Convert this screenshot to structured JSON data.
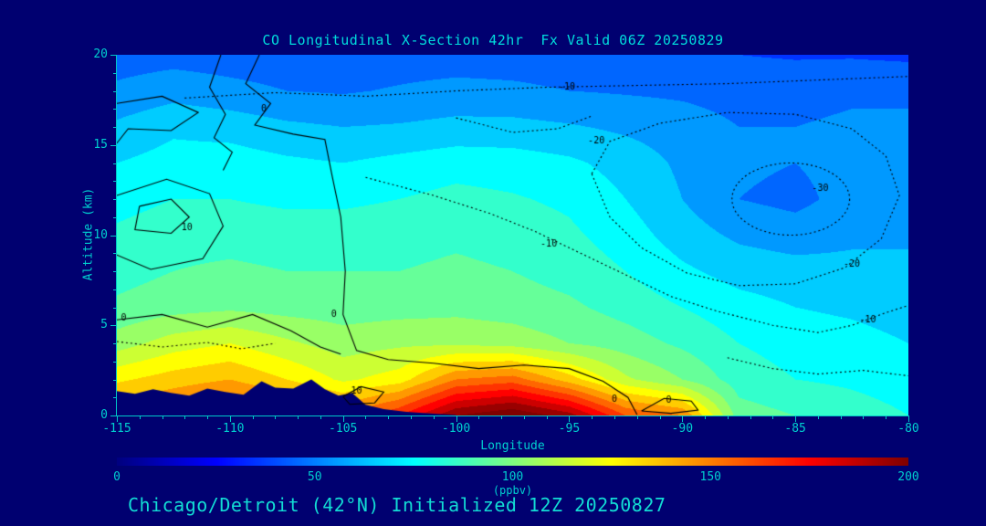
{
  "page": {
    "background": "#000070",
    "accent_text": "#00dcdc",
    "axis_text_color": "#00cfcf"
  },
  "chart_data": {
    "type": "heatmap",
    "title": "CO Longitudinal X-Section 42hr  Fx Valid 06Z 20250829",
    "caption": "Chicago/Detroit (42°N) Initialized 12Z 20250827",
    "xlabel": "Longitude",
    "ylabel": "Altitude (km)",
    "xlim": [
      -115,
      -80
    ],
    "ylim": [
      0,
      20
    ],
    "x_ticks": [
      -115,
      -110,
      -105,
      -100,
      -95,
      -90,
      -85,
      -80
    ],
    "y_ticks": [
      0,
      5,
      10,
      15,
      20
    ],
    "grid_on": false,
    "band_interval_ppbv": 10,
    "colorbar": {
      "min": 0,
      "max": 200,
      "ticks": [
        0,
        50,
        100,
        150,
        200
      ],
      "label": "(ppbv)",
      "colormap": "jet"
    },
    "grid": {
      "lon": [
        -115,
        -112.5,
        -110,
        -107.5,
        -105,
        -102.5,
        -100,
        -97.5,
        -95,
        -92.5,
        -90,
        -87.5,
        -85,
        -82.5,
        -80
      ],
      "alt_km": [
        0,
        2,
        4,
        6,
        8,
        10,
        12,
        14,
        16,
        18,
        20
      ],
      "co_ppbv": [
        [
          150,
          155,
          165,
          160,
          150,
          170,
          200,
          210,
          195,
          160,
          150,
          95,
          90,
          85,
          80
        ],
        [
          128,
          135,
          140,
          130,
          118,
          125,
          150,
          155,
          135,
          112,
          100,
          85,
          80,
          78,
          75
        ],
        [
          105,
          115,
          120,
          112,
          105,
          108,
          108,
          106,
          100,
          95,
          88,
          80,
          76,
          74,
          70
        ],
        [
          92,
          96,
          98,
          96,
          95,
          96,
          97,
          95,
          92,
          86,
          80,
          74,
          70,
          68,
          65
        ],
        [
          86,
          90,
          92,
          90,
          90,
          90,
          92,
          90,
          86,
          80,
          72,
          66,
          64,
          63,
          60
        ],
        [
          82,
          86,
          86,
          85,
          85,
          86,
          88,
          86,
          82,
          75,
          65,
          58,
          55,
          58,
          60
        ],
        [
          76,
          80,
          80,
          78,
          78,
          80,
          83,
          81,
          78,
          70,
          60,
          50,
          47,
          54,
          58
        ],
        [
          70,
          74,
          75,
          72,
          70,
          73,
          76,
          75,
          72,
          66,
          58,
          52,
          50,
          54,
          55
        ],
        [
          62,
          68,
          66,
          62,
          60,
          61,
          63,
          63,
          61,
          58,
          55,
          50,
          50,
          52,
          52
        ],
        [
          52,
          56,
          53,
          50,
          49,
          51,
          53,
          52,
          50,
          49,
          48,
          46,
          46,
          48,
          48
        ],
        [
          45,
          46,
          45,
          44,
          44,
          45,
          45,
          45,
          44,
          43,
          42,
          40,
          39,
          39,
          38
        ]
      ]
    },
    "terrain_profile": [
      {
        "lon": -115,
        "alt": 1.35
      },
      {
        "lon": -114.2,
        "alt": 1.2
      },
      {
        "lon": -113.4,
        "alt": 1.45
      },
      {
        "lon": -112.6,
        "alt": 1.25
      },
      {
        "lon": -111.8,
        "alt": 1.1
      },
      {
        "lon": -111,
        "alt": 1.5
      },
      {
        "lon": -110.2,
        "alt": 1.3
      },
      {
        "lon": -109.4,
        "alt": 1.15
      },
      {
        "lon": -108.6,
        "alt": 1.9
      },
      {
        "lon": -108,
        "alt": 1.55
      },
      {
        "lon": -107.2,
        "alt": 1.5
      },
      {
        "lon": -106.4,
        "alt": 2.0
      },
      {
        "lon": -105.8,
        "alt": 1.45
      },
      {
        "lon": -105.2,
        "alt": 1.1
      },
      {
        "lon": -104.6,
        "alt": 1.25
      },
      {
        "lon": -104,
        "alt": 0.6
      },
      {
        "lon": -103.2,
        "alt": 0.35
      },
      {
        "lon": -102.2,
        "alt": 0.2
      },
      {
        "lon": -101,
        "alt": 0.1
      },
      {
        "lon": -100,
        "alt": 0.03
      }
    ],
    "contours": {
      "solid_levels": [
        0,
        10
      ],
      "dotted_levels": [
        -10,
        -20,
        -30
      ],
      "labels": [
        {
          "text": "0",
          "lon": -108.5,
          "alt": 17.0
        },
        {
          "text": "10",
          "lon": -111.9,
          "alt": 10.4
        },
        {
          "text": "0",
          "lon": -114.7,
          "alt": 5.4
        },
        {
          "text": "0",
          "lon": -105.4,
          "alt": 5.6
        },
        {
          "text": "10",
          "lon": -104.4,
          "alt": 1.35
        },
        {
          "text": "0",
          "lon": -93.0,
          "alt": 0.9
        },
        {
          "text": "0",
          "lon": -90.6,
          "alt": 0.85
        },
        {
          "text": "-10",
          "lon": -95.1,
          "alt": 18.2
        },
        {
          "text": "-20",
          "lon": -93.8,
          "alt": 15.2
        },
        {
          "text": "-30",
          "lon": -83.9,
          "alt": 12.6
        },
        {
          "text": "-20",
          "lon": -82.5,
          "alt": 8.4
        },
        {
          "text": "-10",
          "lon": -95.9,
          "alt": 9.5
        },
        {
          "text": "-10",
          "lon": -81.8,
          "alt": 5.3
        }
      ]
    }
  }
}
